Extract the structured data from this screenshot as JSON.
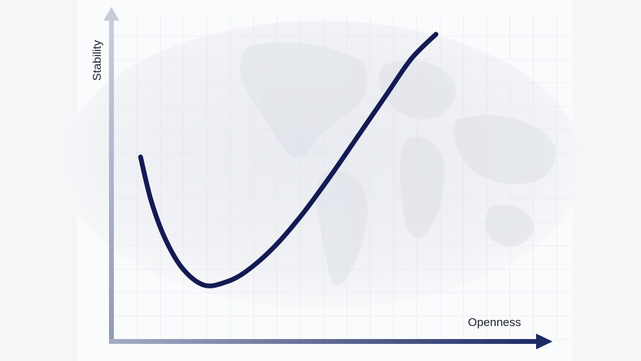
{
  "chart_data": {
    "type": "line",
    "title": "",
    "xlabel": "Openness",
    "ylabel": "Stability",
    "xlim": [
      0,
      10
    ],
    "ylim": [
      0,
      10
    ],
    "grid": true,
    "series": [
      {
        "x": [
          0.0,
          0.3,
          0.7,
          1.2,
          1.8,
          2.4,
          3.0,
          3.8,
          4.6,
          5.4,
          6.2,
          7.0,
          7.7,
          8.4
        ],
        "values": [
          5.5,
          3.9,
          2.5,
          1.4,
          0.8,
          0.9,
          1.3,
          2.2,
          3.4,
          4.8,
          6.3,
          7.8,
          9.1,
          10.0
        ]
      }
    ],
    "colors": {
      "line": "#141a52",
      "axis_start": "#a4adc4",
      "axis_end": "#1e2a66",
      "grid": "#dfe3ec"
    }
  }
}
